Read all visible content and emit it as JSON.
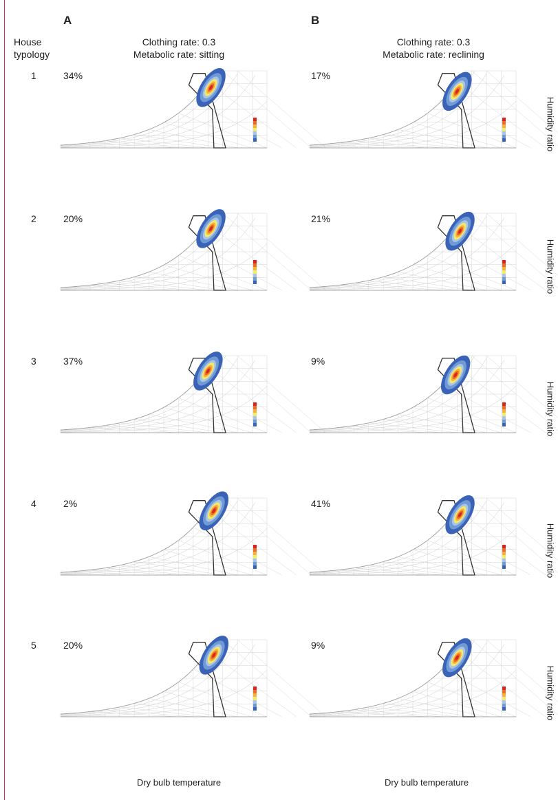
{
  "panels": [
    {
      "letter": "A",
      "header_line1": "Clothing rate: 0.3",
      "header_line2": "Metabolic rate: sitting"
    },
    {
      "letter": "B",
      "header_line1": "Clothing rate: 0.3",
      "header_line2": "Metabolic rate: reclining"
    }
  ],
  "row_header": {
    "line1": "House",
    "line2": "typology"
  },
  "y_axis_label": "Humidity ratio",
  "x_axis_label": "Dry bulb temperature",
  "colors": {
    "frame": "#c0306a",
    "comfort_zone": "#333333",
    "grid": "#b4b4b4"
  },
  "chart_data": [
    {
      "type": "heatmap",
      "panel": "A",
      "typology": "1",
      "percent_label": "34%",
      "xlim": [
        -20,
        50
      ],
      "ylim": [
        0,
        0.03
      ],
      "density_peak": [
        31,
        0.0235
      ]
    },
    {
      "type": "heatmap",
      "panel": "B",
      "typology": "1",
      "percent_label": "17%",
      "xlim": [
        -20,
        50
      ],
      "ylim": [
        0,
        0.03
      ],
      "density_peak": [
        30,
        0.022
      ]
    },
    {
      "type": "heatmap",
      "panel": "A",
      "typology": "2",
      "percent_label": "20%",
      "xlim": [
        -20,
        50
      ],
      "ylim": [
        0,
        0.03
      ],
      "density_peak": [
        31,
        0.024
      ]
    },
    {
      "type": "heatmap",
      "panel": "B",
      "typology": "2",
      "percent_label": "21%",
      "xlim": [
        -20,
        50
      ],
      "ylim": [
        0,
        0.03
      ],
      "density_peak": [
        31,
        0.023
      ]
    },
    {
      "type": "heatmap",
      "panel": "A",
      "typology": "3",
      "percent_label": "37%",
      "xlim": [
        -20,
        50
      ],
      "ylim": [
        0,
        0.03
      ],
      "density_peak": [
        30,
        0.024
      ]
    },
    {
      "type": "heatmap",
      "panel": "B",
      "typology": "3",
      "percent_label": "9%",
      "xlim": [
        -20,
        50
      ],
      "ylim": [
        0,
        0.03
      ],
      "density_peak": [
        29.5,
        0.0225
      ]
    },
    {
      "type": "heatmap",
      "panel": "A",
      "typology": "4",
      "percent_label": "2%",
      "xlim": [
        -20,
        50
      ],
      "ylim": [
        0,
        0.03
      ],
      "density_peak": [
        32,
        0.025
      ]
    },
    {
      "type": "heatmap",
      "panel": "B",
      "typology": "4",
      "percent_label": "41%",
      "xlim": [
        -20,
        50
      ],
      "ylim": [
        0,
        0.03
      ],
      "density_peak": [
        31,
        0.0235
      ]
    },
    {
      "type": "heatmap",
      "panel": "A",
      "typology": "5",
      "percent_label": "20%",
      "xlim": [
        -20,
        50
      ],
      "ylim": [
        0,
        0.03
      ],
      "density_peak": [
        32,
        0.024
      ]
    },
    {
      "type": "heatmap",
      "panel": "B",
      "typology": "5",
      "percent_label": "9%",
      "xlim": [
        -20,
        50
      ],
      "ylim": [
        0,
        0.03
      ],
      "density_peak": [
        30,
        0.023
      ]
    }
  ]
}
